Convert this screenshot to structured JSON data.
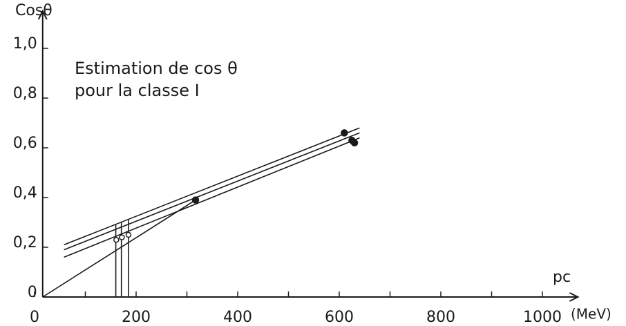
{
  "chart_data": {
    "type": "line",
    "y_label": "Cosθ",
    "x_label": "pc",
    "x_unit": "(MeV)",
    "annotations": [
      "Estimation de cos θ",
      "pour la classe I"
    ],
    "xlim": [
      16,
      1070
    ],
    "ylim": [
      0,
      1.15
    ],
    "xticks": [
      0,
      200,
      400,
      600,
      800,
      1000
    ],
    "xticks_minor": [
      100,
      300,
      500,
      700,
      900
    ],
    "yticks": [
      0,
      {
        "value": 0.2,
        "label": "0,2"
      },
      {
        "value": 0.4,
        "label": "0,4"
      },
      {
        "value": 0.6,
        "label": "0,6"
      },
      {
        "value": 0.8,
        "label": "0,8"
      },
      {
        "value": 1.0,
        "label": "1,0"
      }
    ],
    "color": "#1a1a1a",
    "series": [
      {
        "x": [
          16,
          317
        ],
        "values": [
          0.0,
          0.39
        ],
        "marker": "none"
      },
      {
        "x": [
          58,
          640
        ],
        "values": [
          0.21,
          0.68
        ],
        "marker": "none"
      },
      {
        "x": [
          58,
          640
        ],
        "values": [
          0.19,
          0.66
        ],
        "marker": "none"
      },
      {
        "x": [
          58,
          640
        ],
        "values": [
          0.16,
          0.64
        ],
        "marker": "none"
      },
      {
        "x": [
          160,
          160
        ],
        "values": [
          0,
          0.29
        ],
        "marker": "none"
      },
      {
        "x": [
          171,
          171
        ],
        "values": [
          0,
          0.3
        ],
        "marker": "none"
      },
      {
        "x": [
          185,
          185
        ],
        "values": [
          0,
          0.31
        ],
        "marker": "none"
      },
      {
        "x": [
          317,
          610,
          625,
          630
        ],
        "values": [
          0.39,
          0.66,
          0.63,
          0.62
        ],
        "marker": "filled"
      },
      {
        "x": [
          161,
          172,
          185
        ],
        "values": [
          0.23,
          0.24,
          0.25
        ],
        "marker": "open"
      }
    ]
  }
}
